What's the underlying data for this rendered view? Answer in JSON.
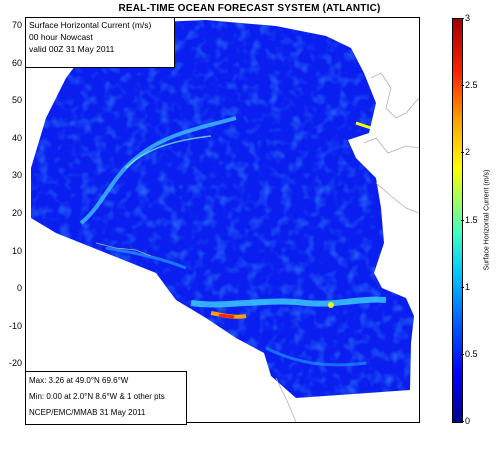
{
  "title": "REAL-TIME OCEAN FORECAST SYSTEM (ATLANTIC)",
  "info_top": {
    "line1": "Surface Horizontal Current (m/s)",
    "line2": " 00 hour Nowcast",
    "line3": "valid 00Z 31 May 2011"
  },
  "info_bottom": {
    "max": "Max: 3.26 at 49.0°N 69.6°W",
    "min": "Min: 0.00 at 2.0°N 8.6°W  & 1 other pts",
    "credit": "NCEP/EMC/MMAB 31 May 2011"
  },
  "lat_ticks": [
    "70",
    "60",
    "50",
    "40",
    "30",
    "20",
    "10",
    "0",
    "-10",
    "-20"
  ],
  "colorbar": {
    "label": "Surface Horizontal Current (m/s)",
    "ticks": [
      "3",
      "2.5",
      "2",
      "1.5",
      "1",
      "0.5",
      "0"
    ],
    "range": [
      0,
      3
    ],
    "colors": [
      "#00008f",
      "#0000ff",
      "#00c8ff",
      "#ffff00",
      "#ff2000",
      "#a00000"
    ]
  },
  "colors": {
    "ocean_base": "#0a1ef0",
    "ocean_dark": "#0014c8",
    "current_fast": "#40c0ff",
    "current_peak": "#ff2000"
  }
}
